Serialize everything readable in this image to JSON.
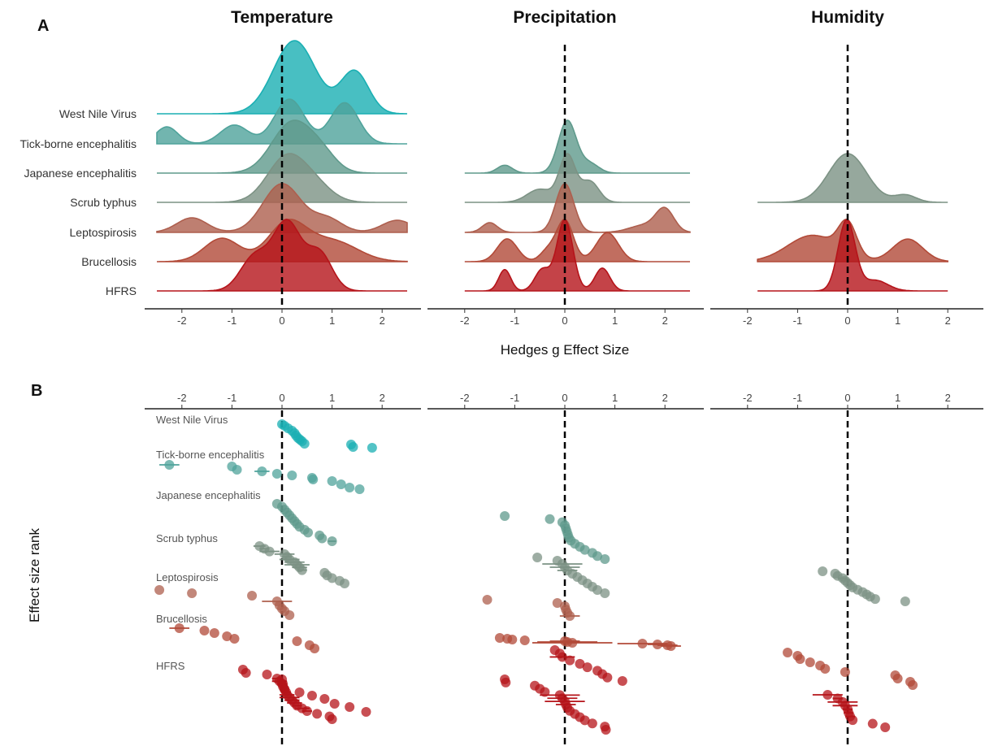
{
  "chart_data": {
    "type": "ridgeline+dotplot",
    "panel_a_label": "A",
    "panel_b_label": "B",
    "variables": [
      "Temperature",
      "Precipitation",
      "Humidity"
    ],
    "diseases": [
      "West Nile Virus",
      "Tick-borne encephalitis",
      "Japanese encephalitis",
      "Scrub typhus",
      "Leptospirosis",
      "Brucellosis",
      "HFRS"
    ],
    "disease_colors": {
      "West Nile Virus": "#1aafb3",
      "Tick-borne encephalitis": "#4fa39b",
      "Japanese encephalitis": "#5f9a8c",
      "Scrub typhus": "#7c9284",
      "Leptospirosis": "#ae5f4e",
      "Brucellosis": "#b24a38",
      "HFRS": "#b5141a"
    },
    "x_ticks": [
      -2,
      -1,
      0,
      1,
      2
    ],
    "xlim": [
      -2.75,
      2.75
    ],
    "x_axis_label": "Hedges g Effect Size",
    "y_axis_label_b": "Effect size rank",
    "reference_line": 0,
    "panel_a": {
      "Temperature": {
        "range": [
          -2.5,
          2.5
        ],
        "densities": {
          "West Nile Virus": [
            [
              0.25,
              0.42,
              1.0
            ],
            [
              1.45,
              0.28,
              0.58
            ]
          ],
          "Tick-borne encephalitis": [
            [
              -2.3,
              0.22,
              0.38
            ],
            [
              -0.95,
              0.28,
              0.42
            ],
            [
              0.15,
              0.3,
              1.0
            ],
            [
              1.25,
              0.28,
              0.92
            ]
          ],
          "Japanese encephalitis": [
            [
              0.2,
              0.4,
              1.0
            ],
            [
              0.8,
              0.3,
              0.3
            ]
          ],
          "Scrub typhus": [
            [
              0.08,
              0.38,
              1.0
            ],
            [
              0.65,
              0.35,
              0.35
            ]
          ],
          "Leptospirosis": [
            [
              -1.8,
              0.3,
              0.3
            ],
            [
              0.0,
              0.38,
              1.0
            ],
            [
              0.9,
              0.3,
              0.28
            ],
            [
              2.3,
              0.3,
              0.25
            ]
          ],
          "Brucellosis": [
            [
              -1.2,
              0.35,
              0.62
            ],
            [
              0.1,
              0.38,
              1.0
            ],
            [
              1.0,
              0.5,
              0.55
            ]
          ],
          "HFRS": [
            [
              -0.55,
              0.28,
              0.5
            ],
            [
              0.1,
              0.28,
              1.0
            ],
            [
              0.75,
              0.25,
              0.55
            ]
          ]
        }
      },
      "Precipitation": {
        "range": [
          -2.0,
          2.5
        ],
        "densities": {
          "West Nile Virus": [],
          "Tick-borne encephalitis": [],
          "Japanese encephalitis": [
            [
              -1.2,
              0.15,
              0.15
            ],
            [
              0.05,
              0.18,
              1.0
            ],
            [
              0.5,
              0.18,
              0.18
            ]
          ],
          "Scrub typhus": [
            [
              -0.5,
              0.25,
              0.28
            ],
            [
              0.05,
              0.16,
              1.0
            ],
            [
              0.5,
              0.18,
              0.45
            ]
          ],
          "Leptospirosis": [
            [
              -1.5,
              0.15,
              0.2
            ],
            [
              0.0,
              0.18,
              1.0
            ],
            [
              1.6,
              0.3,
              0.15
            ],
            [
              2.0,
              0.18,
              0.45
            ]
          ],
          "Brucellosis": [
            [
              -1.15,
              0.2,
              0.55
            ],
            [
              -0.35,
              0.15,
              0.25
            ],
            [
              0.0,
              0.17,
              1.0
            ],
            [
              0.85,
              0.22,
              0.7
            ]
          ],
          "HFRS": [
            [
              -1.2,
              0.12,
              0.3
            ],
            [
              -0.45,
              0.15,
              0.3
            ],
            [
              0.0,
              0.16,
              1.0
            ],
            [
              0.75,
              0.15,
              0.32
            ]
          ]
        }
      },
      "Humidity": {
        "range": [
          -1.8,
          2.0
        ],
        "densities": {
          "West Nile Virus": [],
          "Tick-borne encephalitis": [],
          "Japanese encephalitis": [],
          "Scrub typhus": [
            [
              0.0,
              0.38,
              1.0
            ],
            [
              1.15,
              0.22,
              0.15
            ]
          ],
          "Leptospirosis": [],
          "Brucellosis": [
            [
              -0.7,
              0.5,
              0.7
            ],
            [
              0.0,
              0.18,
              0.85
            ],
            [
              1.2,
              0.3,
              0.6
            ]
          ],
          "HFRS": [
            [
              -0.02,
              0.17,
              1.0
            ],
            [
              0.55,
              0.25,
              0.15
            ]
          ]
        }
      }
    },
    "panel_b": {
      "Temperature": {
        "West Nile Virus": [
          [
            0.0,
            0
          ],
          [
            0.05,
            0
          ],
          [
            0.12,
            0
          ],
          [
            0.2,
            0
          ],
          [
            0.25,
            0
          ],
          [
            0.28,
            0
          ],
          [
            0.32,
            0
          ],
          [
            0.36,
            0
          ],
          [
            0.4,
            0
          ],
          [
            0.45,
            0
          ],
          [
            1.38,
            0
          ],
          [
            1.42,
            0
          ],
          [
            1.8,
            0
          ]
        ],
        "Tick-borne encephalitis": [
          [
            -2.25,
            0.2
          ],
          [
            -1.0,
            0
          ],
          [
            -0.9,
            0
          ],
          [
            -0.4,
            0.15
          ],
          [
            -0.1,
            0
          ],
          [
            0.2,
            0
          ],
          [
            0.6,
            0
          ],
          [
            0.62,
            0
          ],
          [
            1.0,
            0
          ],
          [
            1.18,
            0
          ],
          [
            1.35,
            0
          ],
          [
            1.55,
            0
          ]
        ],
        "Japanese encephalitis": [
          [
            -0.1,
            0
          ],
          [
            0.0,
            0
          ],
          [
            0.05,
            0
          ],
          [
            0.1,
            0
          ],
          [
            0.15,
            0
          ],
          [
            0.2,
            0
          ],
          [
            0.25,
            0
          ],
          [
            0.3,
            0
          ],
          [
            0.35,
            0
          ],
          [
            0.45,
            0
          ],
          [
            0.52,
            0
          ],
          [
            0.75,
            0
          ],
          [
            0.8,
            0
          ],
          [
            1.0,
            0.08
          ]
        ],
        "Scrub typhus": [
          [
            -0.45,
            0.12
          ],
          [
            -0.35,
            0.1
          ],
          [
            -0.25,
            0.2
          ],
          [
            0.05,
            0.2
          ],
          [
            0.1,
            0.1
          ],
          [
            0.15,
            0.2
          ],
          [
            0.25,
            0.2
          ],
          [
            0.3,
            0.25
          ],
          [
            0.35,
            0.15
          ],
          [
            0.4,
            0.1
          ],
          [
            0.85,
            0
          ],
          [
            0.9,
            0
          ],
          [
            1.0,
            0
          ],
          [
            1.15,
            0
          ],
          [
            1.25,
            0
          ]
        ],
        "Leptospirosis": [
          [
            -2.45,
            0
          ],
          [
            -1.8,
            0
          ],
          [
            -0.6,
            0
          ],
          [
            -0.1,
            0.3
          ],
          [
            -0.05,
            0
          ],
          [
            0.0,
            0
          ],
          [
            0.05,
            0
          ],
          [
            0.15,
            0
          ]
        ],
        "Brucellosis": [
          [
            -2.05,
            0.2
          ],
          [
            -1.55,
            0
          ],
          [
            -1.35,
            0
          ],
          [
            -1.1,
            0
          ],
          [
            -0.95,
            0
          ],
          [
            0.3,
            0
          ],
          [
            0.55,
            0
          ],
          [
            0.65,
            0
          ]
        ],
        "HFRS": [
          [
            -0.78,
            0
          ],
          [
            -0.72,
            0
          ],
          [
            -0.3,
            0
          ],
          [
            0.0,
            0
          ],
          [
            0.02,
            0
          ],
          [
            0.05,
            0
          ],
          [
            0.35,
            0
          ],
          [
            0.6,
            0
          ],
          [
            0.85,
            0
          ],
          [
            1.05,
            0
          ],
          [
            1.35,
            0
          ],
          [
            1.68,
            0
          ]
        ],
        "HFRS_2": [
          [
            -0.1,
            0.1
          ],
          [
            -0.05,
            0.15
          ],
          [
            0.0,
            0.1
          ],
          [
            0.02,
            0.05
          ],
          [
            0.05,
            0.05
          ],
          [
            0.08,
            0.1
          ],
          [
            0.1,
            0.15
          ],
          [
            0.15,
            0.2
          ],
          [
            0.2,
            0.15
          ],
          [
            0.25,
            0.15
          ],
          [
            0.3,
            0.1
          ],
          [
            0.4,
            0.15
          ],
          [
            0.5,
            0.1
          ],
          [
            0.7,
            0
          ],
          [
            0.95,
            0
          ],
          [
            1.0,
            0
          ]
        ]
      },
      "Precipitation": {
        "Japanese encephalitis": [
          [
            -1.2,
            0
          ],
          [
            -0.3,
            0
          ],
          [
            -0.05,
            0
          ],
          [
            0.0,
            0
          ],
          [
            0.02,
            0
          ],
          [
            0.04,
            0
          ],
          [
            0.06,
            0
          ],
          [
            0.08,
            0
          ],
          [
            0.12,
            0
          ],
          [
            0.2,
            0
          ],
          [
            0.3,
            0
          ],
          [
            0.4,
            0
          ],
          [
            0.55,
            0
          ],
          [
            0.65,
            0
          ],
          [
            0.8,
            0
          ]
        ],
        "Scrub typhus": [
          [
            -0.55,
            0
          ],
          [
            -0.15,
            0
          ],
          [
            -0.05,
            0.4
          ],
          [
            0.0,
            0.3
          ],
          [
            0.05,
            0.2
          ],
          [
            0.15,
            0
          ],
          [
            0.25,
            0
          ],
          [
            0.35,
            0
          ],
          [
            0.45,
            0
          ],
          [
            0.55,
            0
          ],
          [
            0.65,
            0
          ],
          [
            0.8,
            0
          ]
        ],
        "Leptospirosis": [
          [
            -1.55,
            0
          ],
          [
            -0.15,
            0
          ],
          [
            0.0,
            0
          ],
          [
            0.02,
            0
          ],
          [
            0.05,
            0
          ],
          [
            0.1,
            0.2
          ]
        ],
        "Brucellosis": [
          [
            -1.3,
            0
          ],
          [
            -1.15,
            0
          ],
          [
            -1.05,
            0
          ],
          [
            -0.8,
            0
          ],
          [
            0.0,
            0.3
          ],
          [
            0.05,
            0.6
          ],
          [
            0.15,
            0.8
          ],
          [
            1.55,
            0.5
          ],
          [
            1.85,
            0.2
          ],
          [
            2.05,
            0.2
          ],
          [
            2.12,
            0.2
          ]
        ],
        "HFRS": [
          [
            -0.2,
            0
          ],
          [
            -0.1,
            0
          ],
          [
            -0.05,
            0.25
          ],
          [
            0.1,
            0
          ],
          [
            0.3,
            0
          ],
          [
            0.45,
            0
          ],
          [
            0.65,
            0
          ],
          [
            0.75,
            0
          ],
          [
            0.85,
            0
          ],
          [
            1.15,
            0
          ]
        ],
        "HFRS_2": [
          [
            -1.2,
            0
          ],
          [
            -1.18,
            0
          ],
          [
            -0.6,
            0
          ],
          [
            -0.5,
            0
          ],
          [
            -0.4,
            0
          ],
          [
            -0.1,
            0.4
          ],
          [
            -0.05,
            0.3
          ],
          [
            0.0,
            0.4
          ],
          [
            0.02,
            0.2
          ],
          [
            0.05,
            0
          ],
          [
            0.1,
            0
          ],
          [
            0.2,
            0
          ],
          [
            0.3,
            0
          ],
          [
            0.4,
            0
          ],
          [
            0.55,
            0
          ],
          [
            0.8,
            0
          ],
          [
            0.82,
            0
          ]
        ]
      },
      "Humidity": {
        "Scrub typhus": [
          [
            -0.5,
            0
          ],
          [
            -0.25,
            0
          ],
          [
            -0.2,
            0
          ],
          [
            -0.1,
            0.1
          ],
          [
            -0.05,
            0.1
          ],
          [
            0.0,
            0
          ],
          [
            0.05,
            0
          ],
          [
            0.1,
            0
          ],
          [
            0.2,
            0
          ],
          [
            0.3,
            0
          ],
          [
            0.38,
            0
          ],
          [
            0.45,
            0
          ],
          [
            0.55,
            0
          ],
          [
            1.15,
            0
          ]
        ],
        "Brucellosis": [
          [
            -1.2,
            0
          ],
          [
            -1.0,
            0
          ],
          [
            -0.95,
            0
          ],
          [
            -0.75,
            0
          ],
          [
            -0.55,
            0
          ],
          [
            -0.45,
            0
          ],
          [
            -0.05,
            0
          ],
          [
            0.95,
            0
          ],
          [
            1.0,
            0
          ],
          [
            1.25,
            0
          ],
          [
            1.3,
            0
          ]
        ],
        "HFRS": [
          [
            -0.4,
            0.3
          ],
          [
            -0.2,
            0.1
          ],
          [
            -0.1,
            0.3
          ],
          [
            -0.05,
            0.25
          ],
          [
            0.0,
            0.1
          ],
          [
            0.02,
            0.1
          ],
          [
            0.05,
            0.1
          ],
          [
            0.1,
            0
          ],
          [
            0.5,
            0
          ],
          [
            0.75,
            0
          ]
        ]
      }
    }
  }
}
